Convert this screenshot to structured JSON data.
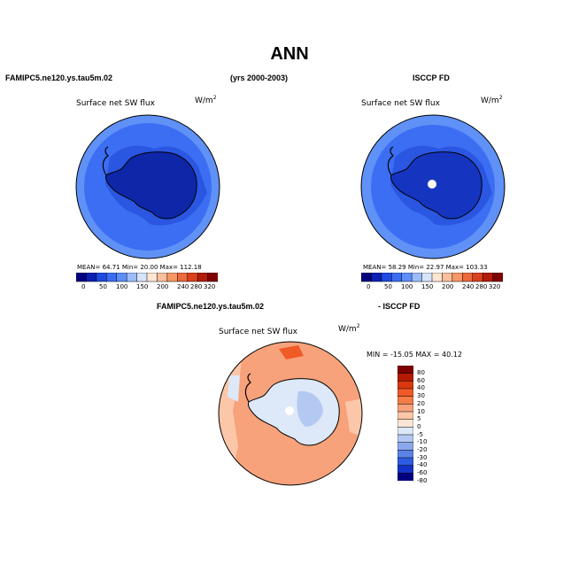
{
  "title": "ANN",
  "panel1": {
    "case": "FAMIPC5.ne120.ys.tau5m.02",
    "years": "(yrs 2000-2003)",
    "field": "Surface net SW flux",
    "units": "W/m",
    "units_exp": "2",
    "stats": "MEAN=  64.71  Min=  20.00  Max= 112.18",
    "colorbar_ticks": [
      "0",
      "50",
      "100",
      "150",
      "200",
      "240",
      "280",
      "320"
    ]
  },
  "panel2": {
    "case": "ISCCP FD",
    "field": "Surface net SW flux",
    "units": "W/m",
    "units_exp": "2",
    "stats": "MEAN=  58.29  Min=  22.97  Max= 103.33",
    "colorbar_ticks": [
      "0",
      "50",
      "100",
      "150",
      "200",
      "240",
      "280",
      "320"
    ]
  },
  "panel3": {
    "case": "FAMIPC5.ne120.ys.tau5m.02",
    "suffix": "- ISCCP FD",
    "field": "Surface net SW flux",
    "units": "W/m",
    "units_exp": "2",
    "minmax": "MIN = -15.05 MAX =  40.12",
    "colorbar_ticks": [
      "80",
      "60",
      "40",
      "30",
      "20",
      "10",
      "5",
      "0",
      "-5",
      "-10",
      "-20",
      "-30",
      "-40",
      "-60",
      "-80"
    ]
  },
  "colors": {
    "abs_scale": [
      "#00007f",
      "#0a1fb4",
      "#1f49e0",
      "#3a6df2",
      "#5d8ef8",
      "#9cbcf8",
      "#d6e4fb",
      "#fde5d2",
      "#fbbf9c",
      "#f59766",
      "#ec6a3c",
      "#d9411c",
      "#b31c0a",
      "#7f0000"
    ],
    "diff_scale": [
      "#7f0000",
      "#b31a00",
      "#d9380f",
      "#ef5a26",
      "#f47c48",
      "#f7a27a",
      "#fbc7a8",
      "#fde5d5",
      "#dde8f8",
      "#b3c9f2",
      "#8aa9ec",
      "#5b83e6",
      "#2e5ce0",
      "#1333c8",
      "#00007f"
    ],
    "ocean1": "#3b6ef2",
    "ocean1_outer": "#5f91f7",
    "land1": "#0d27a8",
    "land2": "#1535c0",
    "diff_bg": "#f7a27a",
    "diff_land": "#dde8f8"
  }
}
